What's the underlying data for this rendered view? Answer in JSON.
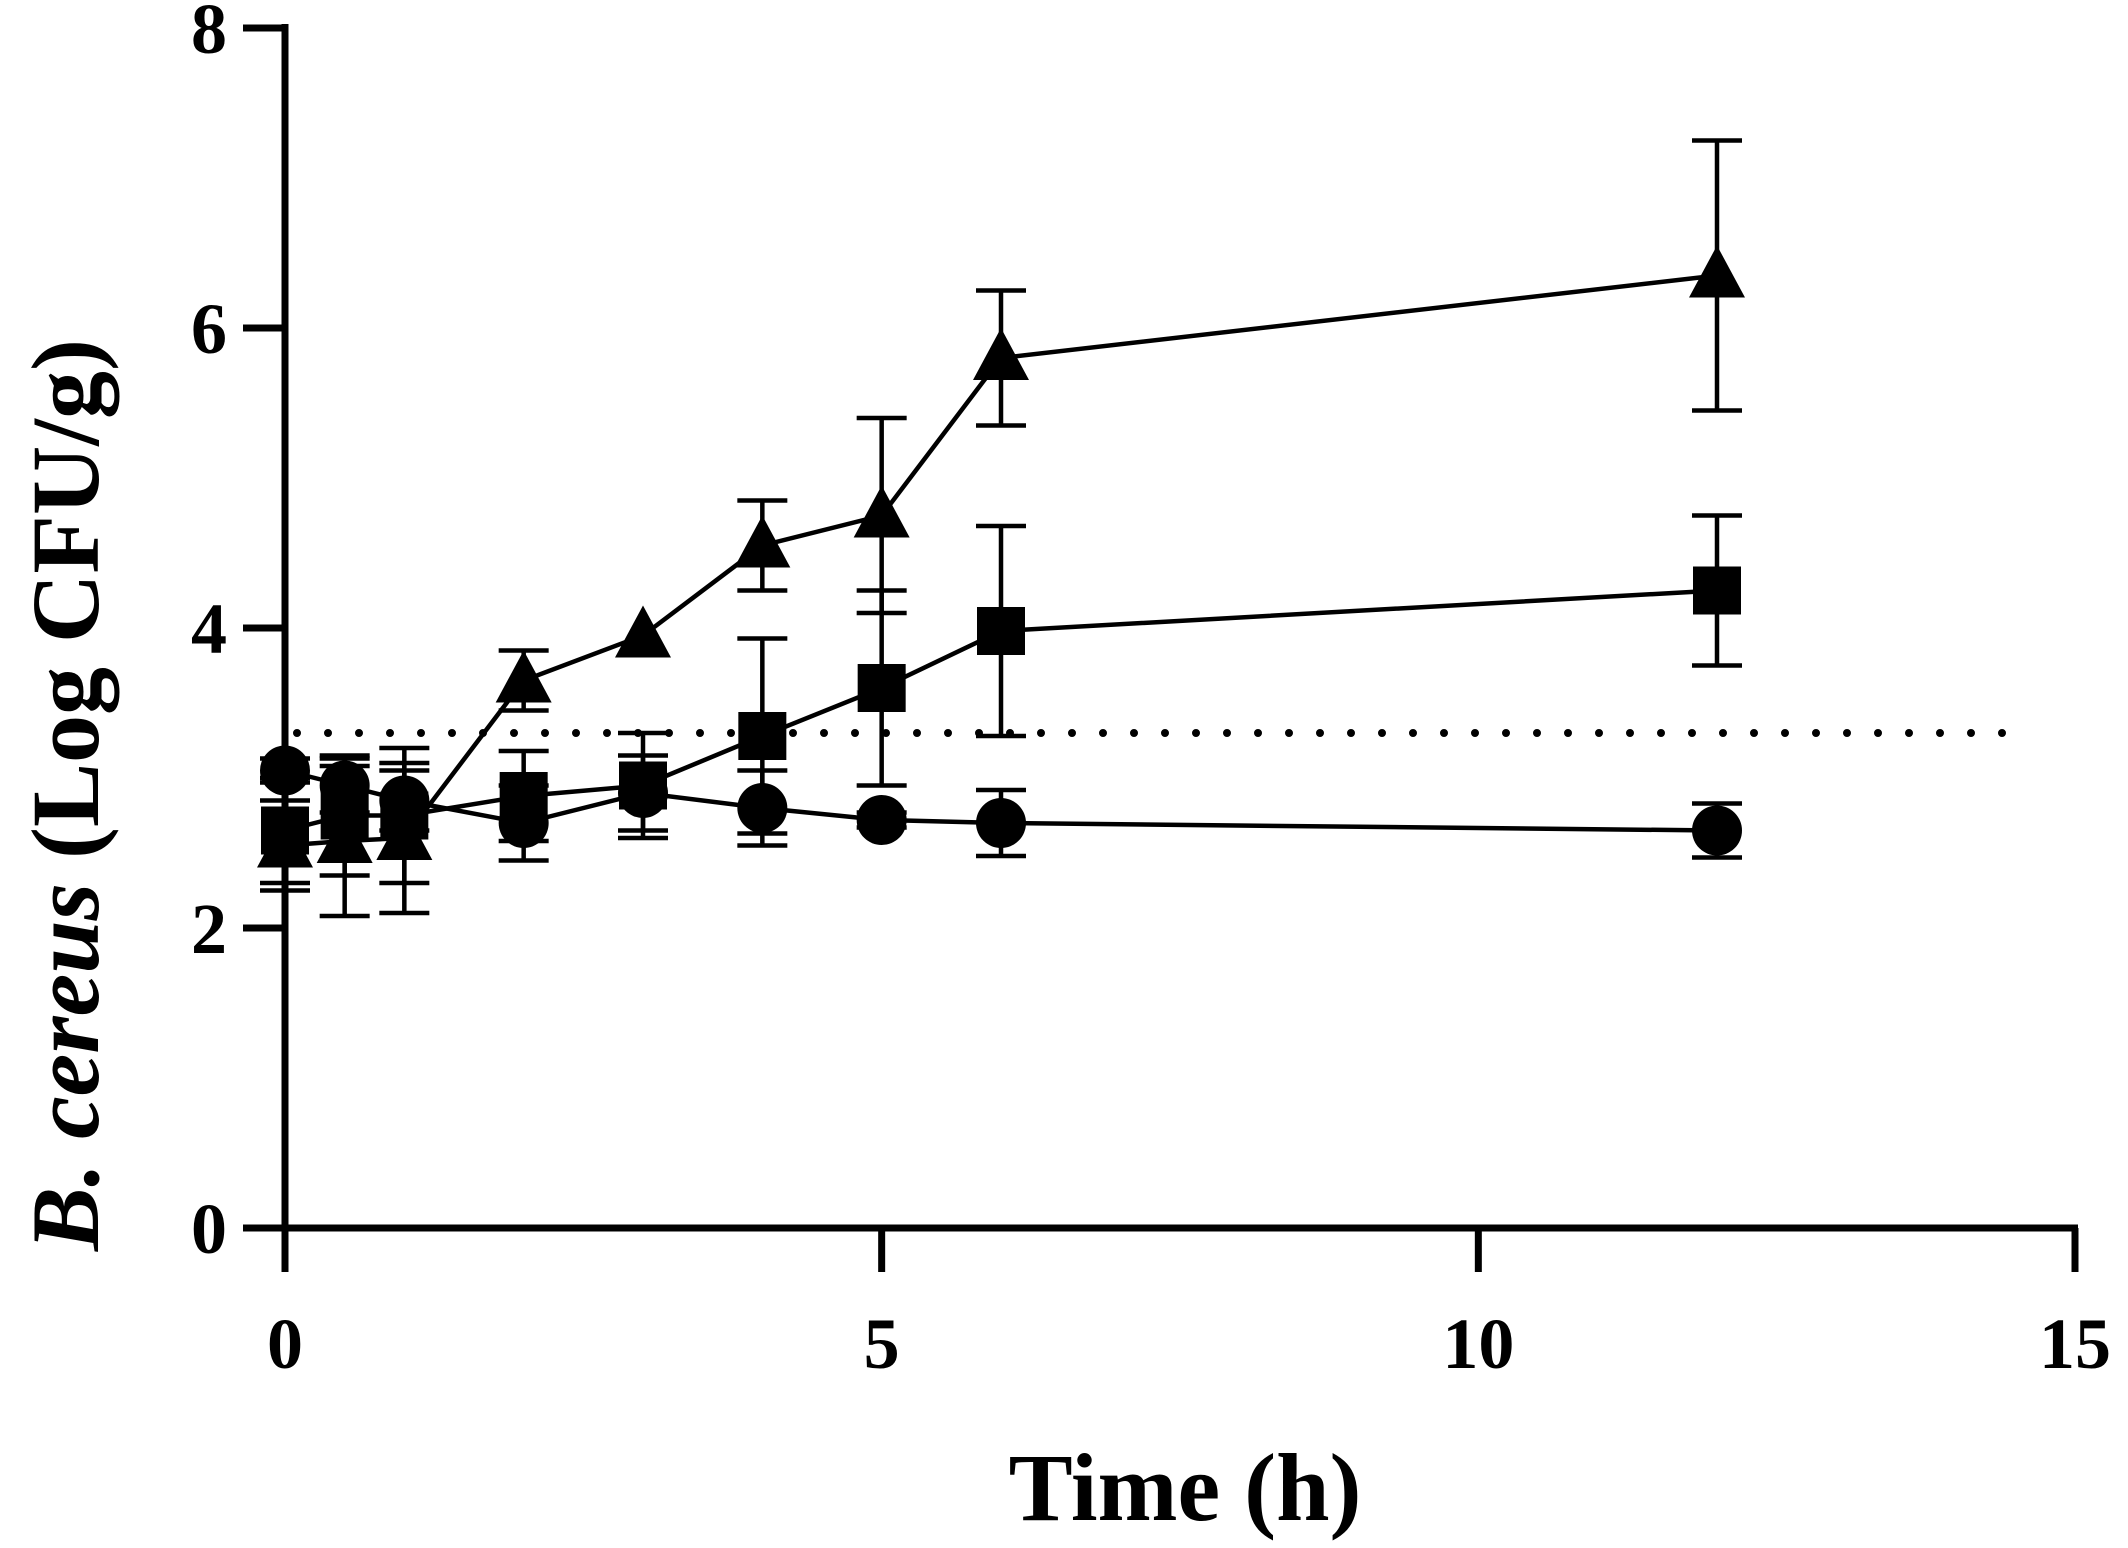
{
  "chart_data": {
    "type": "scatter",
    "xlabel": "Time (h)",
    "ylabel": {
      "italic": "B. cereus",
      "rest": " (Log CFU/g)"
    },
    "xlim": [
      0,
      15
    ],
    "ylim": [
      0,
      8
    ],
    "x_ticks": [
      0,
      5,
      10,
      15
    ],
    "x_tick_labels": [
      "0",
      "5",
      "10",
      "15"
    ],
    "y_ticks": [
      0,
      2,
      4,
      6,
      8
    ],
    "y_tick_labels": [
      "0",
      "2",
      "4",
      "6",
      "8"
    ],
    "grid": false,
    "reference_line": {
      "y": 3.3,
      "style": "dotted"
    },
    "series": [
      {
        "marker": "circle",
        "points": [
          {
            "x": 0,
            "y": 3.05,
            "err": 0.08
          },
          {
            "x": 0.5,
            "y": 2.95,
            "err": 0.18
          },
          {
            "x": 1,
            "y": 2.85,
            "err": 0.2
          },
          {
            "x": 2,
            "y": 2.7,
            "err": 0.25
          },
          {
            "x": 3,
            "y": 2.9,
            "err": 0.25
          },
          {
            "x": 4,
            "y": 2.8,
            "err": 0.25
          },
          {
            "x": 5,
            "y": 2.72,
            "err": 0.05
          },
          {
            "x": 6,
            "y": 2.7,
            "err": 0.22
          },
          {
            "x": 12,
            "y": 2.65,
            "err": 0.18
          }
        ]
      },
      {
        "marker": "square",
        "points": [
          {
            "x": 0,
            "y": 2.65,
            "err": 0.35
          },
          {
            "x": 0.5,
            "y": 2.75,
            "err": 0.4
          },
          {
            "x": 1,
            "y": 2.75,
            "err": 0.45
          },
          {
            "x": 2,
            "y": 2.88,
            "err": 0.3
          },
          {
            "x": 3,
            "y": 2.95,
            "err": 0.35
          },
          {
            "x": 4,
            "y": 3.28,
            "err": 0.65
          },
          {
            "x": 5,
            "y": 3.6,
            "err": 0.65
          },
          {
            "x": 6,
            "y": 3.98,
            "err": 0.7
          },
          {
            "x": 12,
            "y": 4.25,
            "err": 0.5
          }
        ]
      },
      {
        "marker": "triangle",
        "points": [
          {
            "x": 0,
            "y": 2.55,
            "err": 0.3
          },
          {
            "x": 0.5,
            "y": 2.58,
            "err": 0.5
          },
          {
            "x": 1,
            "y": 2.6,
            "err": 0.5
          },
          {
            "x": 2,
            "y": 3.65,
            "err": 0.2
          },
          {
            "x": 3,
            "y": 3.95,
            "err": 0.0
          },
          {
            "x": 4,
            "y": 4.55,
            "err": 0.3
          },
          {
            "x": 5,
            "y": 4.75,
            "err": 0.65
          },
          {
            "x": 6,
            "y": 5.8,
            "err": 0.45
          },
          {
            "x": 12,
            "y": 6.35,
            "err": 0.9
          }
        ]
      }
    ]
  }
}
